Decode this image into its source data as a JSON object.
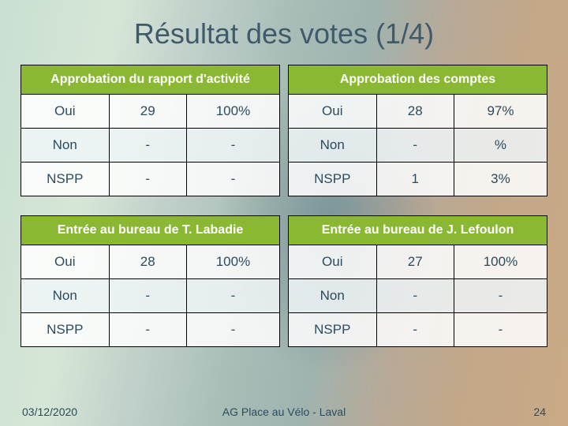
{
  "title": "Résultat des votes (1/4)",
  "title_color": "#3f5a6b",
  "header_bg": "#8ab833",
  "header_fg": "#ffffff",
  "cell_text_color": "#2b4b5e",
  "border_color": "#000000",
  "background_colors": {
    "left": "#c9dfd2",
    "mid": "#a8bdb6",
    "right": "#caa986"
  },
  "tables": [
    {
      "header": "Approbation du rapport d'activité",
      "rows": [
        [
          "Oui",
          "29",
          "100%"
        ],
        [
          "Non",
          "-",
          "-"
        ],
        [
          "NSPP",
          "-",
          "-"
        ]
      ]
    },
    {
      "header": "Approbation des comptes",
      "rows": [
        [
          "Oui",
          "28",
          "97%"
        ],
        [
          "Non",
          "-",
          "%"
        ],
        [
          "NSPP",
          "1",
          "3%"
        ]
      ]
    },
    {
      "header": "Entrée au bureau de T. Labadie",
      "rows": [
        [
          "Oui",
          "28",
          "100%"
        ],
        [
          "Non",
          "-",
          "-"
        ],
        [
          "NSPP",
          "-",
          "-"
        ]
      ]
    },
    {
      "header": "Entrée au bureau de J. Lefoulon",
      "rows": [
        [
          "Oui",
          "27",
          "100%"
        ],
        [
          "Non",
          "-",
          "-"
        ],
        [
          "NSPP",
          "-",
          "-"
        ]
      ]
    }
  ],
  "footer": {
    "date": "03/12/2020",
    "center": "AG Place au Vélo - Laval",
    "page": "24"
  },
  "fonts": {
    "title_size": 36,
    "header_size": 16,
    "cell_size": 17,
    "footer_size": 14
  }
}
